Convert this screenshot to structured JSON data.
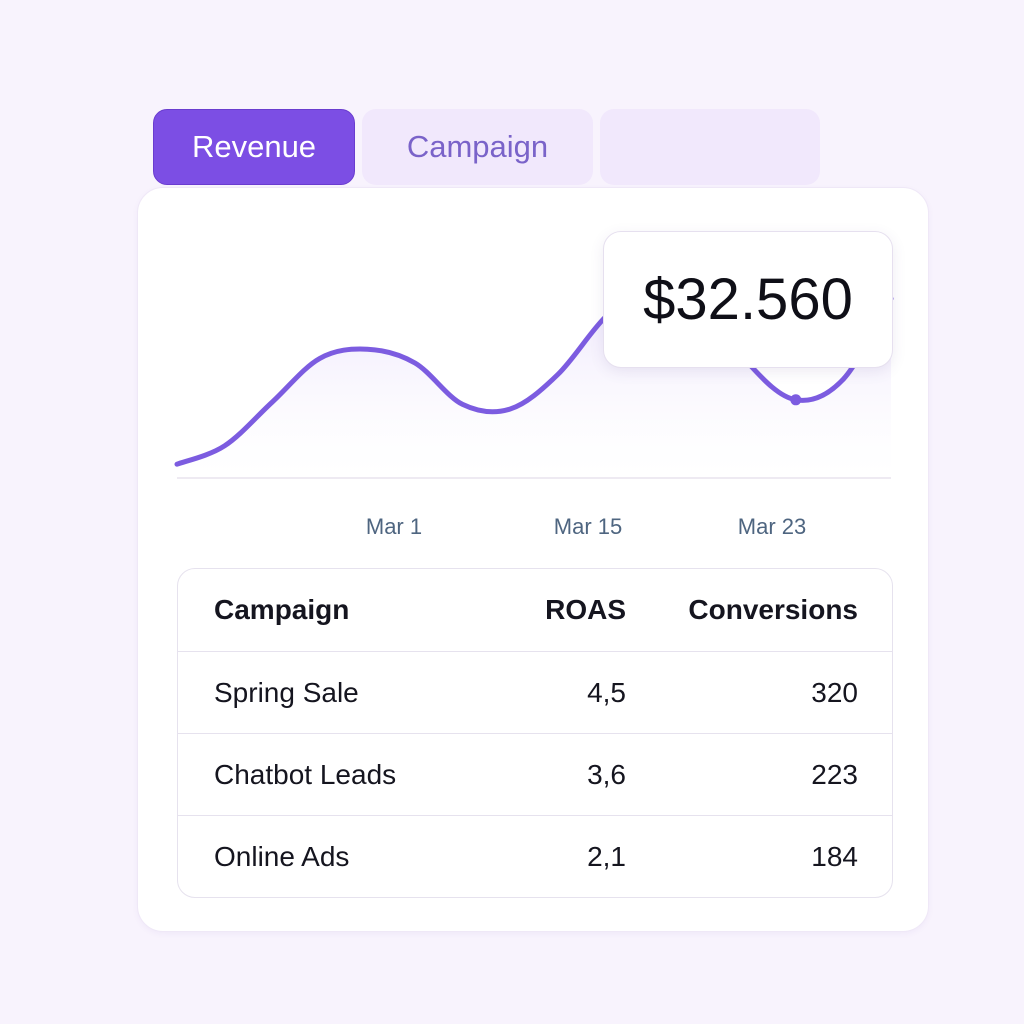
{
  "tabs": [
    {
      "label": "Revenue",
      "active": true
    },
    {
      "label": "Campaign",
      "active": false
    },
    {
      "label": "",
      "active": false
    }
  ],
  "tooltip": {
    "value": "$32.560"
  },
  "chart_data": {
    "type": "line",
    "x_tick_labels": [
      "Mar 1",
      "Mar 15",
      "Mar 23"
    ],
    "series": [
      {
        "color": "#7c5ce0",
        "fill": "#ece4fb",
        "values": [
          0.06,
          0.14,
          0.33,
          0.52,
          0.56,
          0.5,
          0.32,
          0.3,
          0.45,
          0.7,
          0.86,
          0.8,
          0.5,
          0.34,
          0.43,
          0.78
        ]
      }
    ],
    "highlight_index": 13,
    "grid": false,
    "legend": "none"
  },
  "table": {
    "headers": {
      "campaign": "Campaign",
      "roas": "ROAS",
      "conversions": "Conversions"
    },
    "rows": [
      {
        "campaign": "Spring Sale",
        "roas": "4,5",
        "conversions": "320"
      },
      {
        "campaign": "Chatbot Leads",
        "roas": "3,6",
        "conversions": "223"
      },
      {
        "campaign": "Online Ads",
        "roas": "2,1",
        "conversions": "184"
      }
    ]
  },
  "colors": {
    "accent": "#7c4ee4",
    "tab_inactive": "#f1e8fc",
    "background": "#f8f3fd"
  }
}
